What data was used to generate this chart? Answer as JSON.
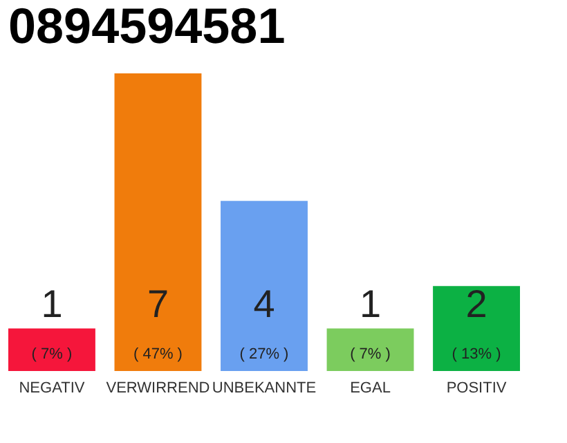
{
  "chart_data": {
    "type": "bar",
    "title": "0894594581",
    "categories": [
      "NEGATIV",
      "VERWIRREND",
      "UNBEKANNTE",
      "EGAL",
      "POSITIV"
    ],
    "values": [
      1,
      7,
      4,
      1,
      2
    ],
    "colors": [
      "#f5163b",
      "#f07c0c",
      "#69a0f0",
      "#7ccc5e",
      "#0cb144"
    ],
    "ylim": [
      0,
      7
    ],
    "data_labels": true,
    "annotations": [
      "( 7% )",
      "( 47% )",
      "( 27% )",
      "( 7% )",
      "( 13% )"
    ],
    "grid": false
  }
}
